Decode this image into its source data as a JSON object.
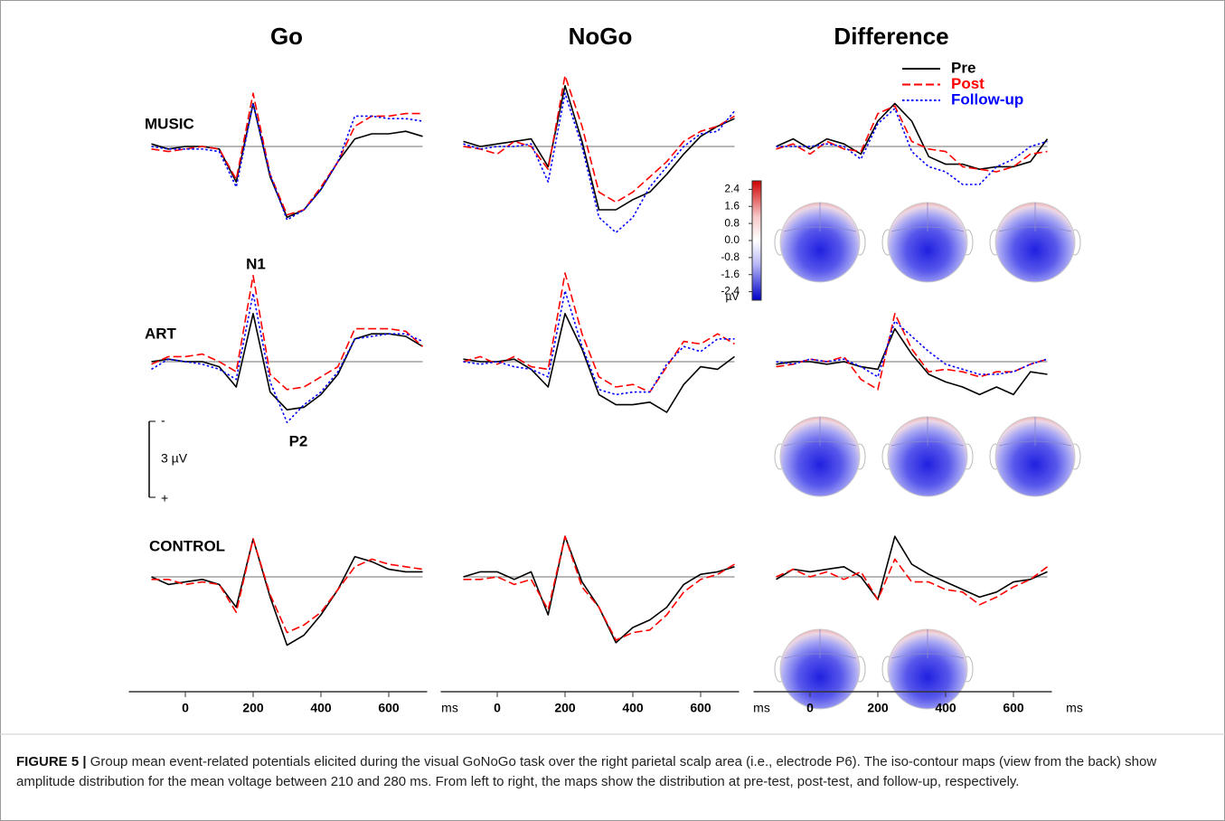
{
  "chart_data": {
    "type": "line",
    "columns": [
      "Go",
      "NoGo",
      "Difference"
    ],
    "rows": [
      "MUSIC",
      "ART",
      "CONTROL"
    ],
    "x": [
      -100,
      -50,
      0,
      50,
      100,
      150,
      200,
      250,
      300,
      350,
      400,
      450,
      500,
      550,
      600,
      650,
      700
    ],
    "xlim": [
      -100,
      700
    ],
    "xticks": [
      0,
      200,
      400,
      600
    ],
    "xlabel": "ms",
    "series": [
      {
        "name": "Pre",
        "color": "#000000",
        "dash": "solid"
      },
      {
        "name": "Post",
        "color": "#ff0000",
        "dash": "dashed"
      },
      {
        "name": "Follow-up",
        "color": "#0000ff",
        "dash": "dotted"
      }
    ],
    "panels": [
      [
        {
          "values": [
            [
              -0.1,
              0.1,
              0.0,
              0.0,
              0.1,
              1.4,
              -1.7,
              1.2,
              2.8,
              2.5,
              1.7,
              0.6,
              -0.3,
              -0.5,
              -0.5,
              -0.6,
              -0.4
            ],
            [
              0.1,
              0.2,
              0.1,
              0.0,
              0.1,
              1.3,
              -2.1,
              1.1,
              2.7,
              2.5,
              1.6,
              0.6,
              -0.8,
              -1.2,
              -1.2,
              -1.3,
              -1.3
            ],
            [
              0.0,
              0.1,
              0.1,
              0.1,
              0.2,
              1.6,
              -1.7,
              1.1,
              2.9,
              2.5,
              1.7,
              0.6,
              -1.2,
              -1.2,
              -1.1,
              -1.1,
              -1.0
            ]
          ]
        },
        {
          "values": [
            [
              -0.2,
              0.0,
              -0.1,
              -0.2,
              -0.3,
              0.8,
              -2.4,
              -0.2,
              2.5,
              2.5,
              2.1,
              1.8,
              1.1,
              0.3,
              -0.4,
              -0.8,
              -1.1
            ],
            [
              0.0,
              0.1,
              0.3,
              -0.2,
              0.0,
              0.9,
              -2.8,
              -0.8,
              1.8,
              2.2,
              1.8,
              1.2,
              0.6,
              -0.2,
              -0.6,
              -0.8,
              -1.2
            ],
            [
              -0.1,
              0.1,
              0.0,
              0.0,
              -0.1,
              1.4,
              -2.1,
              0.0,
              2.8,
              3.4,
              2.8,
              1.6,
              0.8,
              0.0,
              -0.5,
              -0.6,
              -1.4
            ]
          ]
        },
        {
          "values": [
            [
              0.0,
              -0.3,
              0.1,
              -0.3,
              -0.1,
              0.3,
              -1.0,
              -1.7,
              -1.0,
              0.4,
              0.7,
              0.7,
              0.9,
              0.8,
              0.8,
              0.6,
              -0.3
            ],
            [
              0.1,
              -0.1,
              0.3,
              -0.2,
              0.1,
              0.2,
              -1.3,
              -1.6,
              -0.2,
              0.1,
              0.2,
              0.8,
              0.9,
              1.0,
              0.8,
              0.3,
              0.2
            ],
            [
              0.0,
              0.0,
              0.0,
              -0.1,
              0.0,
              0.5,
              -0.9,
              -1.5,
              0.2,
              0.8,
              1.0,
              1.5,
              1.5,
              0.8,
              0.5,
              0.0,
              -0.2
            ]
          ]
        }
      ],
      [
        {
          "values": [
            [
              0.0,
              -0.1,
              0.0,
              0.0,
              0.2,
              1.0,
              -1.9,
              1.2,
              1.9,
              1.8,
              1.3,
              0.5,
              -0.9,
              -1.1,
              -1.1,
              -1.0,
              -0.6
            ],
            [
              0.1,
              -0.2,
              -0.2,
              -0.3,
              0.0,
              0.4,
              -3.4,
              0.5,
              1.1,
              1.0,
              0.6,
              0.2,
              -1.3,
              -1.3,
              -1.3,
              -1.2,
              -0.6
            ],
            [
              0.3,
              -0.1,
              0.0,
              0.1,
              0.3,
              0.7,
              -2.7,
              0.8,
              2.4,
              1.7,
              1.2,
              0.4,
              -0.9,
              -1.0,
              -1.1,
              -1.1,
              -0.8
            ]
          ]
        },
        {
          "values": [
            [
              -0.1,
              0.0,
              0.0,
              -0.1,
              0.3,
              1.0,
              -1.9,
              -0.5,
              1.3,
              1.7,
              1.7,
              1.6,
              2.0,
              0.9,
              0.2,
              0.3,
              -0.2
            ],
            [
              0.0,
              -0.2,
              0.1,
              -0.2,
              0.2,
              0.3,
              -3.5,
              -1.1,
              0.6,
              1.0,
              0.9,
              1.2,
              0.2,
              -0.8,
              -0.7,
              -1.1,
              -0.7
            ],
            [
              0.0,
              0.1,
              0.0,
              0.2,
              0.3,
              0.6,
              -2.8,
              -0.6,
              1.1,
              1.3,
              1.2,
              1.2,
              0.1,
              -0.6,
              -0.4,
              -0.9,
              -0.9
            ]
          ]
        },
        {
          "values": [
            [
              0.1,
              0.0,
              0.0,
              0.1,
              0.0,
              0.2,
              0.3,
              -1.3,
              -0.3,
              0.5,
              0.8,
              1.0,
              1.3,
              1.0,
              1.3,
              0.4,
              0.5
            ],
            [
              0.2,
              0.1,
              -0.1,
              0.0,
              -0.2,
              0.7,
              1.1,
              -1.9,
              -0.5,
              0.4,
              0.3,
              0.4,
              0.6,
              0.4,
              0.4,
              0.1,
              -0.1
            ],
            [
              0.0,
              0.1,
              -0.1,
              0.0,
              -0.1,
              0.2,
              0.6,
              -1.6,
              -1.0,
              -0.4,
              0.1,
              0.3,
              0.5,
              0.5,
              0.4,
              0.1,
              -0.1
            ]
          ]
        }
      ],
      [
        {
          "values": [
            [
              0.0,
              0.3,
              0.2,
              0.1,
              0.3,
              1.2,
              -1.5,
              0.8,
              2.7,
              2.3,
              1.5,
              0.5,
              -0.8,
              -0.6,
              -0.3,
              -0.2,
              -0.2
            ],
            [
              0.1,
              0.1,
              0.3,
              0.2,
              0.3,
              1.4,
              -1.5,
              0.7,
              2.2,
              1.9,
              1.4,
              0.5,
              -0.4,
              -0.7,
              -0.5,
              -0.4,
              -0.3
            ]
          ]
        },
        {
          "values": [
            [
              0.0,
              -0.2,
              -0.2,
              0.1,
              -0.2,
              1.5,
              -1.6,
              0.2,
              1.2,
              2.6,
              2.0,
              1.7,
              1.2,
              0.3,
              -0.1,
              -0.2,
              -0.4
            ],
            [
              0.1,
              0.1,
              0.0,
              0.3,
              0.1,
              1.3,
              -1.6,
              0.4,
              1.2,
              2.5,
              2.2,
              2.1,
              1.5,
              0.6,
              0.1,
              -0.1,
              -0.5
            ]
          ]
        },
        {
          "values": [
            [
              0.1,
              -0.3,
              -0.2,
              -0.3,
              -0.4,
              0.0,
              0.9,
              -1.6,
              -0.5,
              -0.1,
              0.2,
              0.5,
              0.8,
              0.6,
              0.2,
              0.1,
              -0.2
            ],
            [
              0.0,
              -0.3,
              0.0,
              -0.2,
              0.1,
              -0.2,
              0.9,
              -0.7,
              0.2,
              0.2,
              0.5,
              0.6,
              1.1,
              0.8,
              0.4,
              0.1,
              -0.4
            ]
          ]
        }
      ]
    ],
    "annotations": [
      "N1",
      "P2"
    ],
    "scale_bar": {
      "top": "-",
      "label": "3 µV",
      "bottom": "+",
      "value": 3
    },
    "colorbar": {
      "ticks": [
        2.4,
        1.6,
        0.8,
        {
          "value": 0,
          "label": "0.0"
        },
        -0.8,
        -1.6,
        -2.4
      ],
      "unit": "µV",
      "lim": [
        2.8,
        -2.8
      ]
    }
  },
  "caption": {
    "label": "FIGURE 5 |",
    "text": " Group mean event-related potentials elicited during the visual GoNoGo task over the right parietal scalp area (i.e., electrode P6). The iso-contour maps (view from the back) show amplitude distribution for the mean voltage between 210 and 280 ms. From left to right, the maps show the distribution at pre-test, post-test, and follow-up, respectively."
  }
}
